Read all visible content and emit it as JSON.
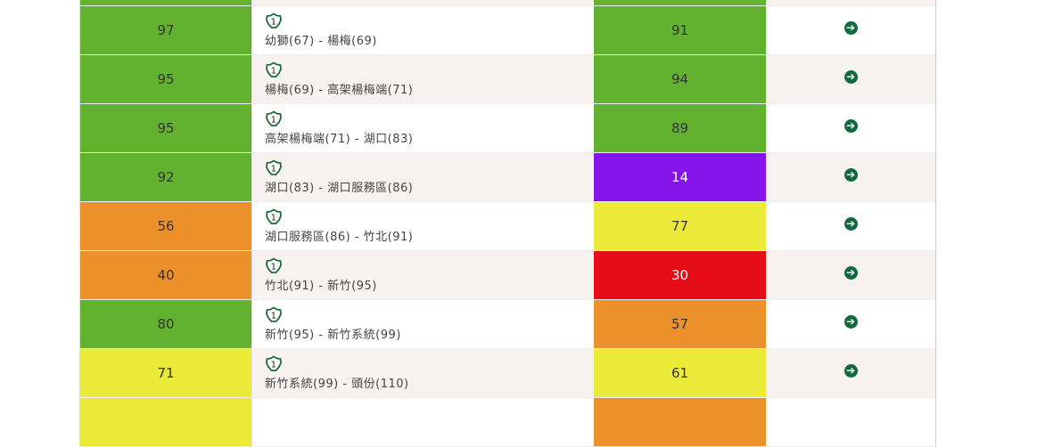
{
  "colors": {
    "green": "#63b22f",
    "orange": "#ec902b",
    "yellow": "#ecea38",
    "purple": "#8414ea",
    "red": "#e60c18"
  },
  "highway_icon": "national-freeway-1-shield-icon",
  "action_icon": "arrow-circle-right-icon",
  "highway_number": "1",
  "rows": [
    {
      "speed_a": "",
      "color_a": "green",
      "section": "",
      "speed_b": "",
      "color_b": "green",
      "partial": true
    },
    {
      "speed_a": "97",
      "color_a": "green",
      "section": "幼獅(67) - 楊梅(69)",
      "speed_b": "91",
      "color_b": "green"
    },
    {
      "speed_a": "95",
      "color_a": "green",
      "section": "楊梅(69) - 高架楊梅端(71)",
      "speed_b": "94",
      "color_b": "green"
    },
    {
      "speed_a": "95",
      "color_a": "green",
      "section": "高架楊梅端(71) - 湖口(83)",
      "speed_b": "89",
      "color_b": "green"
    },
    {
      "speed_a": "92",
      "color_a": "green",
      "section": "湖口(83) - 湖口服務區(86)",
      "speed_b": "14",
      "color_b": "purple"
    },
    {
      "speed_a": "56",
      "color_a": "orange",
      "section": "湖口服務區(86) - 竹北(91)",
      "speed_b": "77",
      "color_b": "yellow"
    },
    {
      "speed_a": "40",
      "color_a": "orange",
      "section": "竹北(91) - 新竹(95)",
      "speed_b": "30",
      "color_b": "red"
    },
    {
      "speed_a": "80",
      "color_a": "green",
      "section": "新竹(95) - 新竹系統(99)",
      "speed_b": "57",
      "color_b": "orange"
    },
    {
      "speed_a": "71",
      "color_a": "yellow",
      "section": "新竹系統(99) - 頭份(110)",
      "speed_b": "61",
      "color_b": "yellow"
    },
    {
      "speed_a": "",
      "color_a": "yellow",
      "section": "",
      "speed_b": "",
      "color_b": "orange",
      "partial": true
    }
  ]
}
